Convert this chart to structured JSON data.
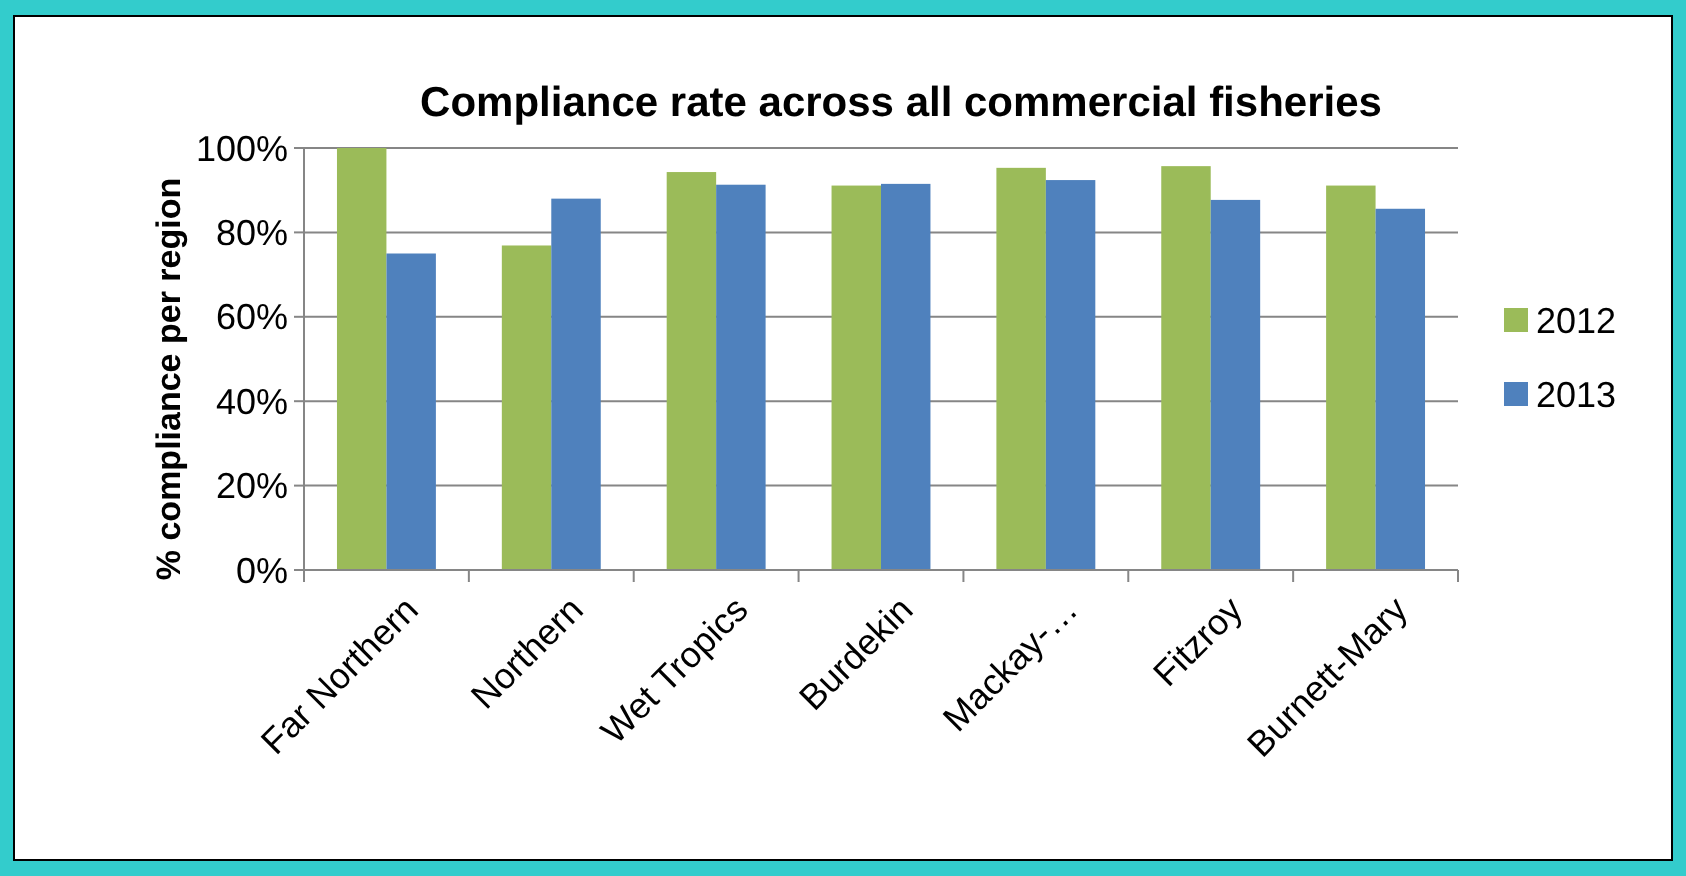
{
  "chart_data": {
    "type": "bar",
    "title": "Compliance rate across all commercial fisheries",
    "ylabel": "% compliance per region",
    "categories": [
      "Far Northern",
      "Northern",
      "Wet Tropics",
      "Burdekin",
      "Mackay-…",
      "Fitzroy",
      "Burnett-Mary"
    ],
    "series": [
      {
        "name": "2012",
        "color": "#9bbb59",
        "values": [
          100,
          76.9,
          94.3,
          91.1,
          95.3,
          95.7,
          91.1
        ]
      },
      {
        "name": "2013",
        "color": "#4f81bd",
        "values": [
          75,
          88,
          91.3,
          91.5,
          92.4,
          87.7,
          85.6
        ]
      }
    ],
    "ylim": [
      0,
      100
    ],
    "yticks": [
      {
        "value": 0,
        "label": "0%"
      },
      {
        "value": 20,
        "label": "20%"
      },
      {
        "value": 40,
        "label": "40%"
      },
      {
        "value": 60,
        "label": "60%"
      },
      {
        "value": 80,
        "label": "80%"
      },
      {
        "value": 100,
        "label": "100%"
      }
    ],
    "grid": "y",
    "legend": "right"
  }
}
